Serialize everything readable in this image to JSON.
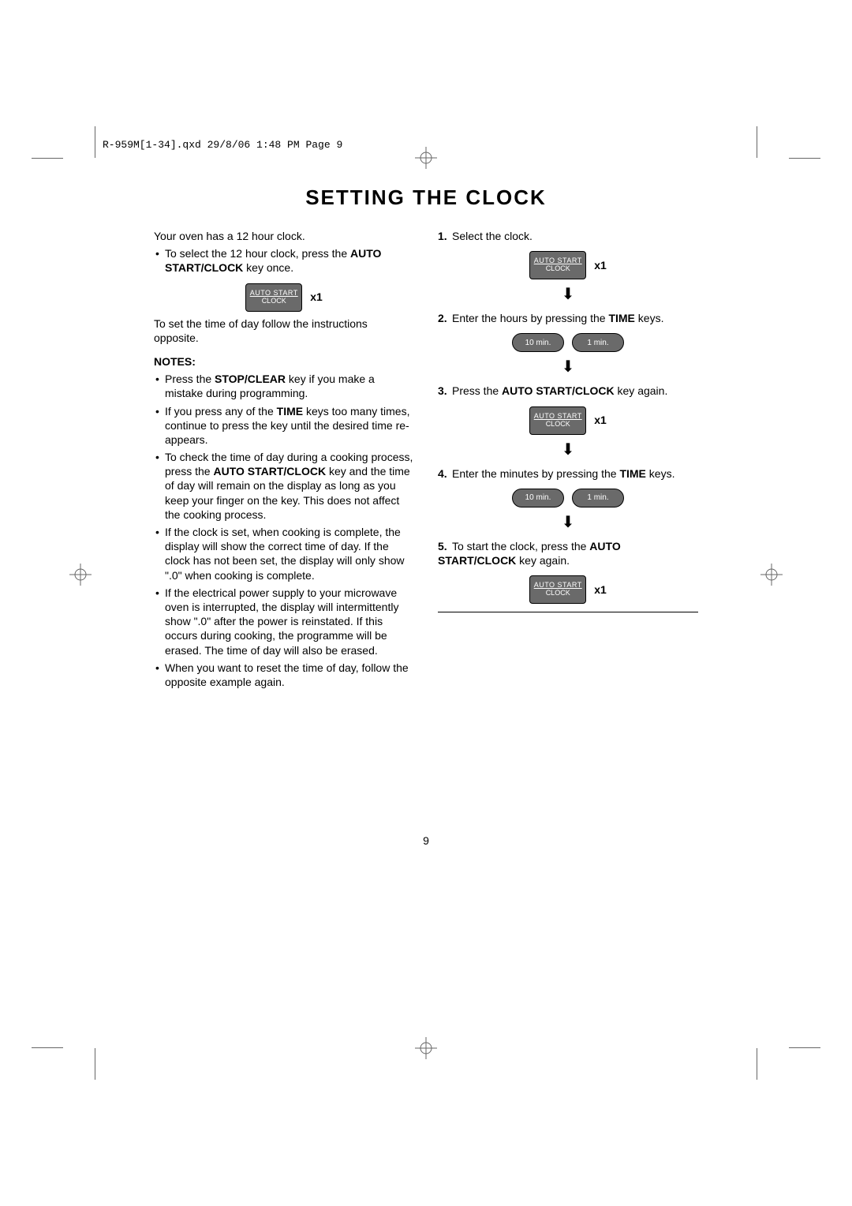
{
  "meta": {
    "file_path_header": "R-959M[1-34].qxd  29/8/06  1:48 PM  Page 9"
  },
  "title": "SETTING THE CLOCK",
  "left": {
    "intro": "Your oven has a 12 hour clock.",
    "bullet_select": "To select the 12 hour clock, press the ",
    "bullet_select_bold": "AUTO START/CLOCK",
    "bullet_select_tail": " key once.",
    "fig_button": {
      "top": "AUTO START",
      "bottom": "CLOCK",
      "count": "x1"
    },
    "set_time_instr": "To set the time of day follow the instructions opposite.",
    "notes_heading": "NOTES:",
    "notes": [
      {
        "pre": "Press the ",
        "b": "STOP/CLEAR",
        "post": " key if you make a mistake during programming."
      },
      {
        "pre": "If you press any of the ",
        "b": "TIME",
        "post": " keys too many times, continue to press the key until the desired time re-appears."
      },
      {
        "pre": "To check the time of day during a cooking process, press the ",
        "b": "AUTO START/CLOCK",
        "post": " key and the time of day will remain on the display as long as you keep your finger on the key. This does not affect the cooking process."
      },
      {
        "pre": "",
        "b": "",
        "post": "If the clock is set, when cooking is complete, the display will show the correct time of day. If the clock has not been set, the display will only show \".0\" when cooking is complete."
      },
      {
        "pre": "",
        "b": "",
        "post": "If the electrical power supply to your microwave oven is interrupted, the display will intermittently show \".0\" after the power is reinstated. If this occurs during cooking, the programme will be erased. The time of day will also be erased."
      },
      {
        "pre": "",
        "b": "",
        "post": "When you want to reset the time of day, follow the opposite example again."
      }
    ]
  },
  "right": {
    "steps": [
      {
        "n": "1.",
        "text": "Select the clock.",
        "fig_type": "clock",
        "btn": {
          "top": "AUTO START",
          "bottom": "CLOCK",
          "count": "x1"
        },
        "arrow": true
      },
      {
        "n": "2.",
        "pre": "Enter the hours by pressing the ",
        "b": "TIME",
        "post": " keys.",
        "fig_type": "time",
        "time_a": "10 min.",
        "time_b": "1 min.",
        "arrow": true
      },
      {
        "n": "3.",
        "pre": "Press the ",
        "b": "AUTO START/CLOCK",
        "post": " key again.",
        "fig_type": "clock",
        "btn": {
          "top": "AUTO START",
          "bottom": "CLOCK",
          "count": "x1"
        },
        "arrow": true
      },
      {
        "n": "4.",
        "pre": "Enter the minutes by pressing the ",
        "b": "TIME",
        "post": " keys.",
        "fig_type": "time",
        "time_a": "10 min.",
        "time_b": "1 min.",
        "arrow": true
      },
      {
        "n": "5.",
        "pre": "To start the clock, press the ",
        "b": "AUTO START/CLOCK",
        "post": " key again.",
        "fig_type": "clock",
        "btn": {
          "top": "AUTO START",
          "bottom": "CLOCK",
          "count": "x1"
        },
        "arrow": false
      }
    ]
  },
  "page_number": "9",
  "colors": {
    "button_bg": "#6a6a6a",
    "button_text": "#ffffff",
    "text": "#000000",
    "background": "#ffffff"
  }
}
